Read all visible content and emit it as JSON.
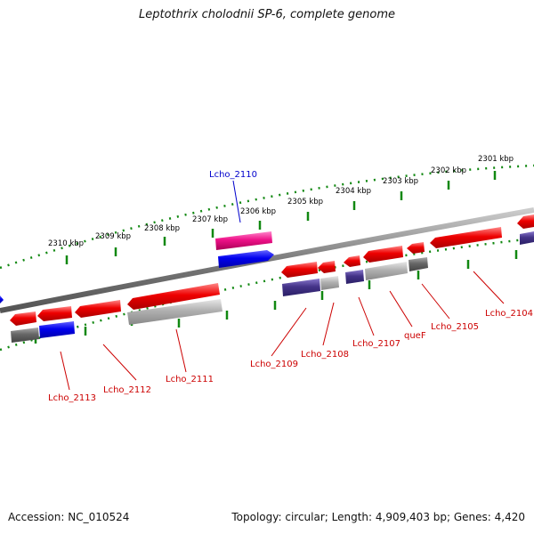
{
  "title": "Leptothrix cholodnii SP-6, complete genome",
  "footer": {
    "accession": "Accession: NC_010524",
    "topology": "Topology: circular; Length: 4,909,403 bp; Genes: 4,420"
  },
  "colors": {
    "backbone": "#7a7a7a",
    "tick": "#118811",
    "scale_text": "#000000",
    "gene_red": "#ee0000",
    "gene_blue": "#0000ee",
    "gene_pink": "#ee1188",
    "gene_slate": "#443388",
    "gene_lightgray": "#b0b0b0",
    "gene_darkgray": "#666666",
    "label_red": "#cc0000",
    "label_blue": "#0000cc"
  },
  "scale_labels": [
    "2310 kbp",
    "2309 kbp",
    "2308 kbp",
    "2307 kbp",
    "2306 kbp",
    "2305 kbp",
    "2304 kbp",
    "2303 kbp",
    "2302 kbp",
    "2301 kbp"
  ],
  "gene_labels": {
    "lcho_2110": "Lcho_2110",
    "lcho_2104": "Lcho_2104",
    "lcho_2105": "Lcho_2105",
    "quef": "queF",
    "lcho_2107": "Lcho_2107",
    "lcho_2108": "Lcho_2108",
    "lcho_2109": "Lcho_2109",
    "lcho_2111": "Lcho_2111",
    "lcho_2112": "Lcho_2112",
    "lcho_2113": "Lcho_2113"
  }
}
